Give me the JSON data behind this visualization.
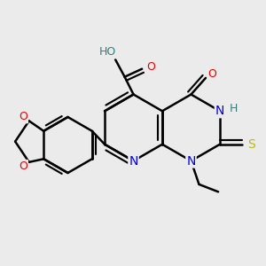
{
  "bg_color": "#ebebeb",
  "atom_colors": {
    "C": "#000000",
    "N": "#0000ee",
    "O": "#ee0000",
    "S": "#bbbb00",
    "H": "#2e8080"
  },
  "bond_color": "#000000",
  "bond_lw": 1.8,
  "figsize": [
    3.0,
    3.0
  ],
  "dpi": 100,
  "xlim": [
    0,
    10
  ],
  "ylim": [
    0,
    10
  ]
}
